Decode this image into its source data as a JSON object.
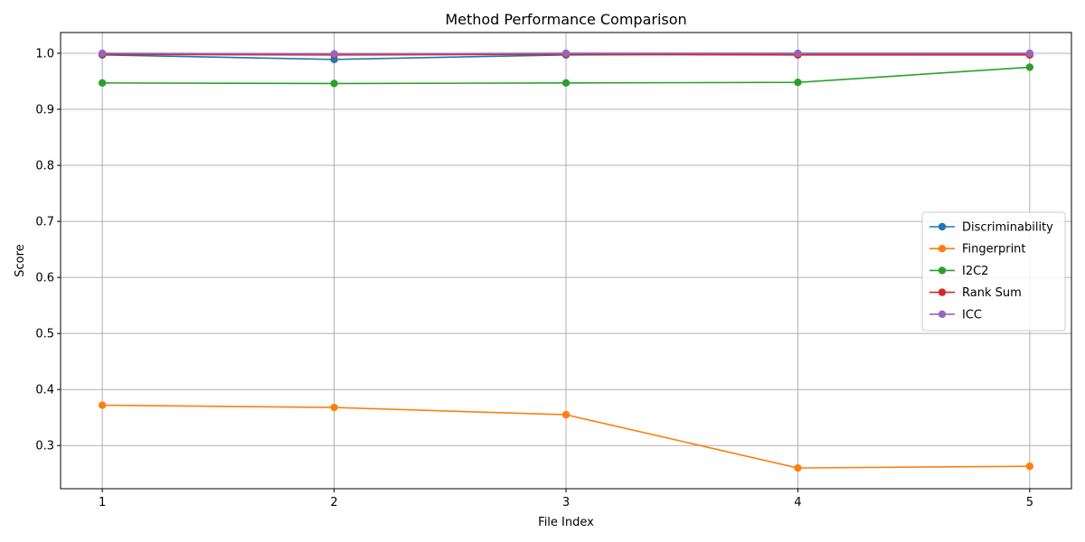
{
  "chart_data": {
    "type": "line",
    "title": "Method Performance Comparison",
    "xlabel": "File Index",
    "ylabel": "Score",
    "x": [
      1,
      2,
      3,
      4,
      5
    ],
    "xticks": [
      "1",
      "2",
      "3",
      "4",
      "5"
    ],
    "yticks": [
      "0.3",
      "0.4",
      "0.5",
      "0.6",
      "0.7",
      "0.8",
      "0.9",
      "1.0"
    ],
    "ytick_values": [
      0.3,
      0.4,
      0.5,
      0.6,
      0.7,
      0.8,
      0.9,
      1.0
    ],
    "xlim": [
      0.82,
      5.18
    ],
    "ylim": [
      0.223,
      1.037
    ],
    "grid": true,
    "legend_position": "center-right",
    "series": [
      {
        "name": "Discriminability",
        "color": "#1f77b4",
        "values": [
          0.997,
          0.989,
          0.997,
          0.999,
          0.999
        ]
      },
      {
        "name": "Fingerprint",
        "color": "#ff7f0e",
        "values": [
          0.372,
          0.368,
          0.355,
          0.26,
          0.263
        ]
      },
      {
        "name": "I2C2",
        "color": "#2ca02c",
        "values": [
          0.947,
          0.946,
          0.947,
          0.948,
          0.975
        ]
      },
      {
        "name": "Rank Sum",
        "color": "#d62728",
        "values": [
          0.998,
          0.997,
          0.998,
          0.997,
          0.997
        ]
      },
      {
        "name": "ICC",
        "color": "#9467bd",
        "values": [
          1.0,
          0.999,
          1.0,
          1.0,
          1.0
        ]
      }
    ]
  }
}
